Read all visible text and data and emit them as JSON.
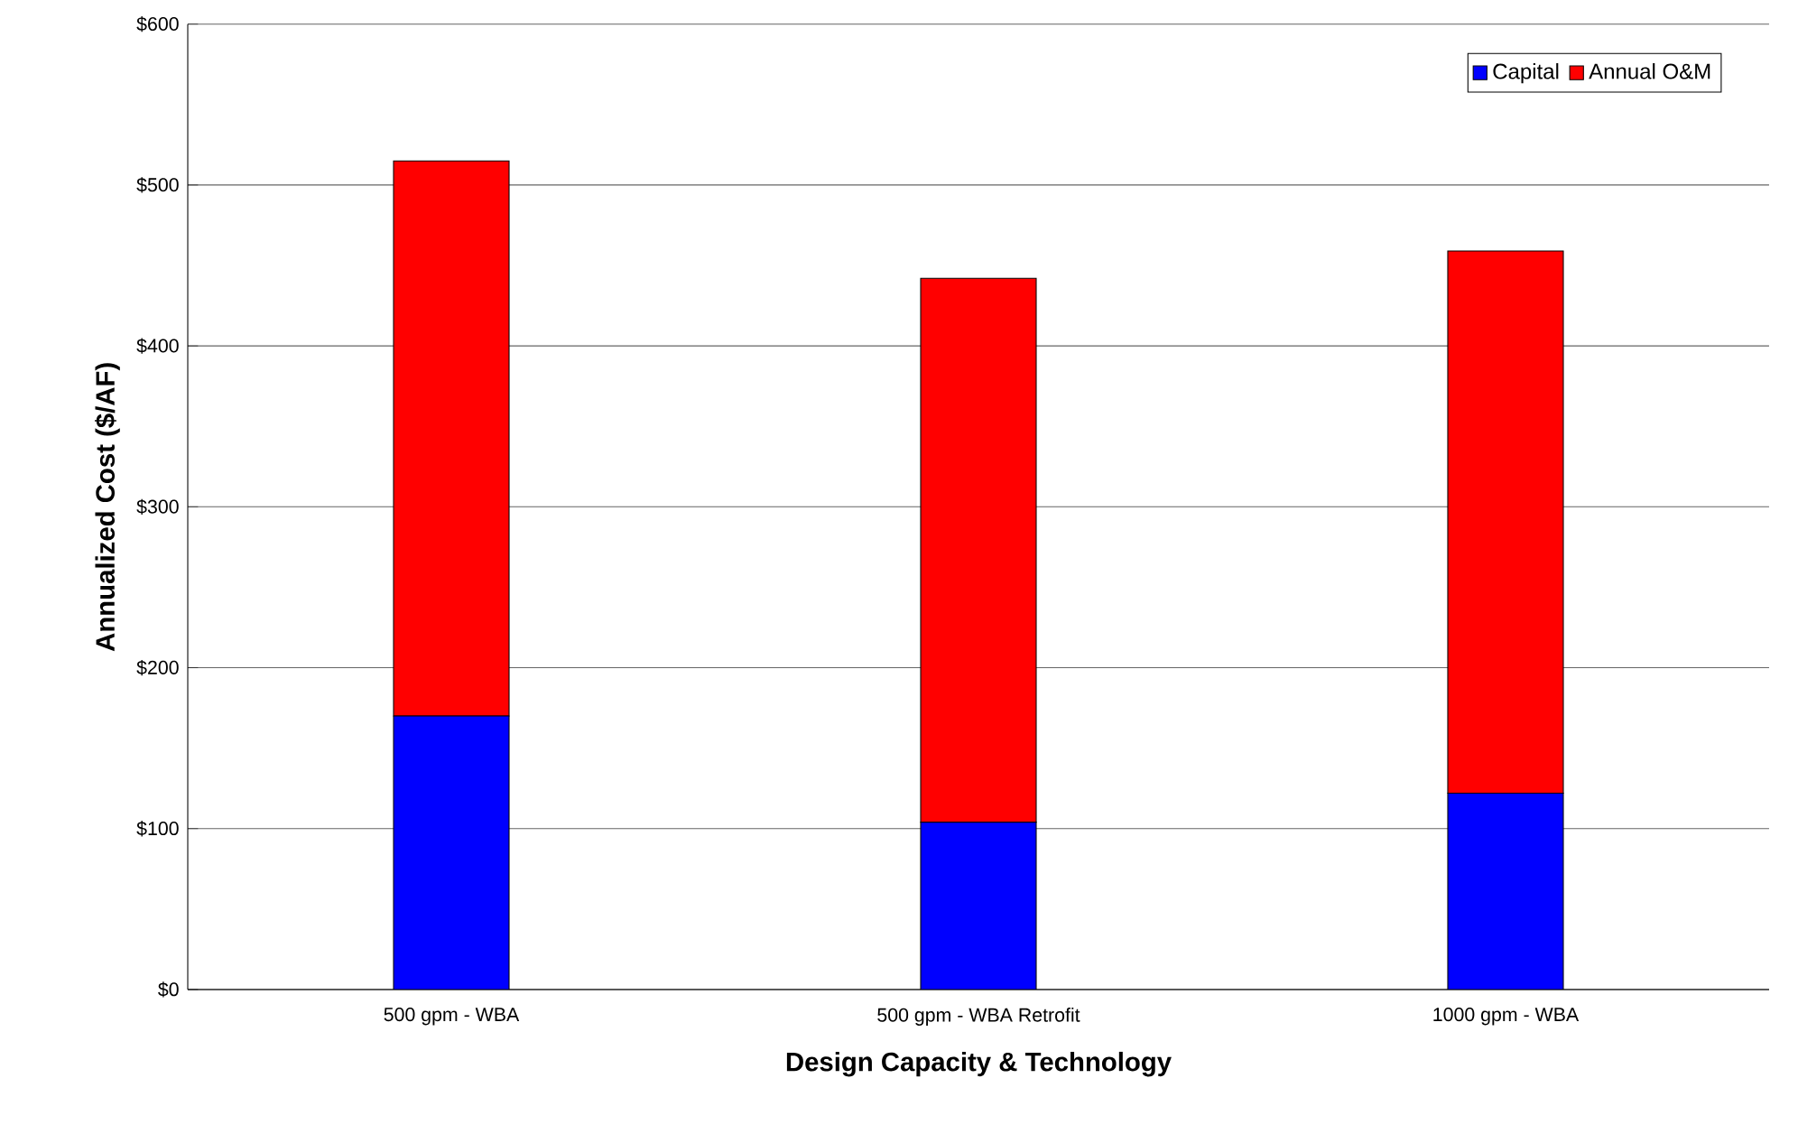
{
  "chart_data": {
    "type": "bar",
    "stacked": true,
    "xlabel": "Design Capacity & Technology",
    "ylabel": "Annualized Cost ($/AF)",
    "categories": [
      "500 gpm - WBA",
      "500 gpm - WBA Retrofit",
      "1000 gpm - WBA"
    ],
    "series": [
      {
        "name": "Capital",
        "color": "#0000ff",
        "values": [
          170,
          104,
          122
        ]
      },
      {
        "name": "Annual O&M",
        "color": "#ff0000",
        "values": [
          345,
          338,
          337
        ]
      }
    ],
    "ylim": [
      0,
      600
    ],
    "yticks": [
      {
        "value": 0,
        "label": "$0"
      },
      {
        "value": 100,
        "label": "$100"
      },
      {
        "value": 200,
        "label": "$200"
      },
      {
        "value": 300,
        "label": "$300"
      },
      {
        "value": 400,
        "label": "$400"
      },
      {
        "value": 500,
        "label": "$500"
      },
      {
        "value": 600,
        "label": "$600"
      }
    ],
    "grid": "y",
    "legend": "top right"
  }
}
